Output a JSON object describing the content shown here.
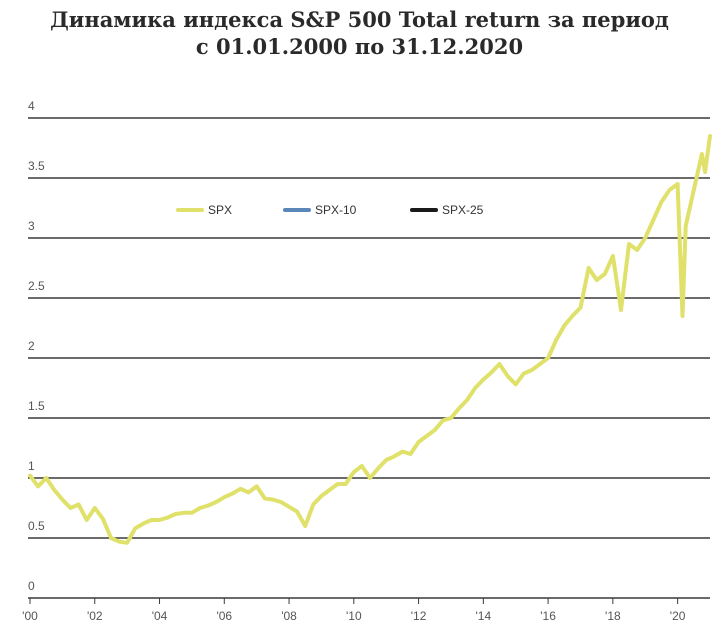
{
  "chart_data": {
    "type": "line",
    "title": "Динамика индекса S&P 500 Total return за период",
    "subtitle": "с 01.01.2000 по 31.12.2020",
    "ylim": [
      0,
      4
    ],
    "y_ticks": [
      "0",
      "0.5",
      "1",
      "1.5",
      "2",
      "2.5",
      "3",
      "3.5",
      "4"
    ],
    "x_tick_labels": [
      "'00",
      "'02",
      "'04",
      "'06",
      "'08",
      "'10",
      "'12",
      "'14",
      "'16",
      "'18",
      "'20"
    ],
    "xlim": [
      2000,
      2021
    ],
    "grid": true,
    "legend_position": "top-left",
    "series": [
      {
        "name": "SPX",
        "color": "#dfe16a",
        "x": [
          2000.0,
          2000.25,
          2000.5,
          2000.75,
          2001.0,
          2001.25,
          2001.5,
          2001.75,
          2002.0,
          2002.25,
          2002.5,
          2002.75,
          2003.0,
          2003.25,
          2003.5,
          2003.75,
          2004.0,
          2004.25,
          2004.5,
          2004.75,
          2005.0,
          2005.25,
          2005.5,
          2005.75,
          2006.0,
          2006.25,
          2006.5,
          2006.75,
          2007.0,
          2007.25,
          2007.5,
          2007.75,
          2008.0,
          2008.25,
          2008.5,
          2008.75,
          2009.0,
          2009.25,
          2009.5,
          2009.75,
          2010.0,
          2010.25,
          2010.5,
          2010.75,
          2011.0,
          2011.25,
          2011.5,
          2011.75,
          2012.0,
          2012.25,
          2012.5,
          2012.75,
          2013.0,
          2013.25,
          2013.5,
          2013.75,
          2014.0,
          2014.25,
          2014.5,
          2014.75,
          2015.0,
          2015.25,
          2015.5,
          2015.75,
          2016.0,
          2016.25,
          2016.5,
          2016.75,
          2017.0,
          2017.25,
          2017.5,
          2017.75,
          2018.0,
          2018.25,
          2018.5,
          2018.75,
          2019.0,
          2019.25,
          2019.5,
          2019.75,
          2020.0,
          2020.15,
          2020.25,
          2020.5,
          2020.75,
          2020.85,
          2021.0
        ],
        "values": [
          1.02,
          0.93,
          1.0,
          0.9,
          0.82,
          0.75,
          0.78,
          0.65,
          0.75,
          0.66,
          0.5,
          0.47,
          0.46,
          0.58,
          0.62,
          0.65,
          0.65,
          0.67,
          0.7,
          0.71,
          0.71,
          0.75,
          0.77,
          0.8,
          0.84,
          0.87,
          0.91,
          0.88,
          0.93,
          0.83,
          0.82,
          0.8,
          0.76,
          0.72,
          0.6,
          0.78,
          0.85,
          0.9,
          0.95,
          0.95,
          1.05,
          1.1,
          1.0,
          1.08,
          1.15,
          1.18,
          1.22,
          1.2,
          1.3,
          1.35,
          1.4,
          1.48,
          1.5,
          1.58,
          1.65,
          1.75,
          1.82,
          1.88,
          1.95,
          1.85,
          1.78,
          1.87,
          1.9,
          1.95,
          2.0,
          2.15,
          2.27,
          2.35,
          2.42,
          2.75,
          2.65,
          2.7,
          2.85,
          2.4,
          2.95,
          2.9,
          3.0,
          3.15,
          3.3,
          3.4,
          3.45,
          2.35,
          3.1,
          3.4,
          3.7,
          3.55,
          3.85
        ]
      },
      {
        "name": "SPX-10",
        "color": "#5b87b8",
        "values": []
      },
      {
        "name": "SPX-25",
        "color": "#1a1a1a",
        "values": []
      }
    ]
  }
}
